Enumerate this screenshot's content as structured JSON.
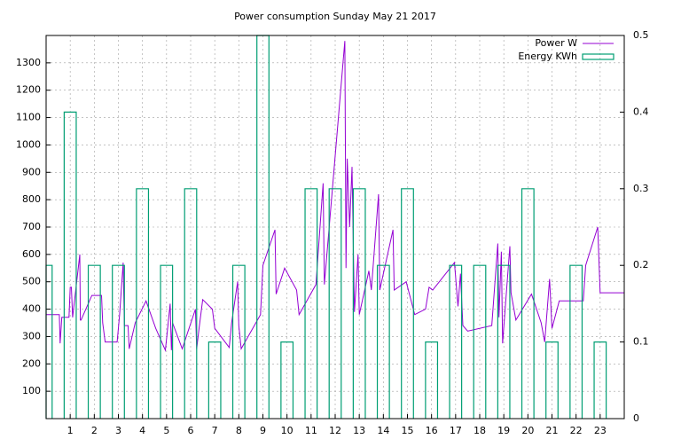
{
  "chart_data": {
    "type": "line",
    "title": "Power consumption Sunday May 21 2017",
    "xlim": [
      0,
      24
    ],
    "xticks": [
      1,
      2,
      3,
      4,
      5,
      6,
      7,
      8,
      9,
      10,
      11,
      12,
      13,
      14,
      15,
      16,
      17,
      18,
      19,
      20,
      21,
      22,
      23
    ],
    "ylim": [
      0,
      1400
    ],
    "yticks": [
      100,
      200,
      300,
      400,
      500,
      600,
      700,
      800,
      900,
      1000,
      1100,
      1200,
      1300
    ],
    "y2lim": [
      0,
      0.5
    ],
    "y2ticks": [
      0,
      0.1,
      0.2,
      0.3,
      0.4,
      0.5
    ],
    "grid": true,
    "legend": "top-right",
    "series": [
      {
        "name": "Power W",
        "type": "line",
        "color": "#9400d3",
        "x": [
          0,
          0.55,
          0.58,
          0.65,
          0.95,
          1.0,
          1.05,
          1.1,
          1.4,
          1.42,
          1.45,
          1.9,
          2.3,
          2.35,
          2.45,
          2.95,
          3.05,
          3.2,
          3.25,
          3.4,
          3.45,
          3.7,
          4.15,
          4.55,
          4.95,
          5.15,
          5.2,
          5.25,
          5.65,
          6.2,
          6.25,
          6.35,
          6.5,
          6.9,
          7.0,
          7.6,
          7.7,
          7.95,
          8.0,
          8.1,
          8.9,
          9.0,
          9.5,
          9.55,
          9.9,
          10.4,
          10.5,
          11.2,
          11.5,
          11.55,
          12.4,
          12.45,
          12.5,
          12.6,
          12.7,
          12.8,
          12.95,
          13.0,
          13.4,
          13.5,
          13.8,
          13.85,
          14.4,
          14.45,
          14.95,
          15.3,
          15.75,
          15.9,
          16.05,
          16.95,
          17.1,
          17.2,
          17.3,
          17.5,
          18.5,
          18.75,
          18.8,
          18.9,
          18.95,
          19.25,
          19.3,
          19.5,
          20.15,
          20.55,
          20.7,
          20.9,
          21.0,
          21.3,
          22.3,
          22.4,
          22.9,
          23.0,
          24
        ],
        "values": [
          380,
          380,
          275,
          370,
          370,
          480,
          480,
          370,
          600,
          360,
          360,
          450,
          450,
          350,
          280,
          280,
          380,
          570,
          340,
          340,
          255,
          350,
          430,
          330,
          250,
          420,
          250,
          350,
          255,
          400,
          255,
          330,
          435,
          400,
          330,
          260,
          350,
          500,
          340,
          255,
          380,
          560,
          690,
          455,
          550,
          470,
          380,
          490,
          860,
          490,
          1380,
          550,
          950,
          700,
          920,
          390,
          600,
          380,
          540,
          470,
          820,
          470,
          690,
          470,
          500,
          380,
          400,
          480,
          470,
          570,
          410,
          530,
          340,
          320,
          340,
          640,
          370,
          610,
          275,
          630,
          460,
          360,
          455,
          350,
          280,
          510,
          330,
          430,
          430,
          560,
          700,
          460,
          460
        ]
      },
      {
        "name": "Energy KWh",
        "type": "bar",
        "axis": "y2",
        "color": "#009e73",
        "x": [
          0,
          1,
          2,
          3,
          4,
          5,
          6,
          7,
          8,
          9,
          10,
          11,
          12,
          13,
          14,
          15,
          16,
          17,
          18,
          19,
          20,
          21,
          22,
          23
        ],
        "values": [
          0.2,
          0.4,
          0.2,
          0.2,
          0.3,
          0.2,
          0.3,
          0.1,
          0.2,
          0.5,
          0.1,
          0.3,
          0.3,
          0.3,
          0.2,
          0.3,
          0.1,
          0.2,
          0.2,
          0.2,
          0.3,
          0.1,
          0.2,
          0.1
        ]
      }
    ]
  }
}
